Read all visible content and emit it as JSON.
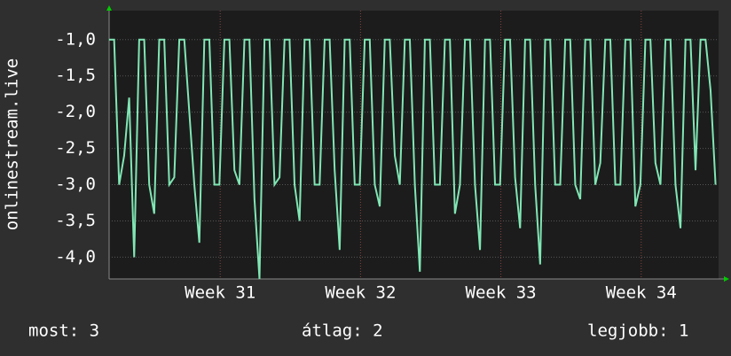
{
  "chart_data": {
    "type": "line",
    "y_label": "onlinestream.live",
    "xlim": [
      0,
      30.4
    ],
    "xticks": [
      {
        "value": 5.54,
        "label": "Week 31"
      },
      {
        "value": 12.54,
        "label": "Week 32"
      },
      {
        "value": 19.54,
        "label": "Week 33"
      },
      {
        "value": 26.54,
        "label": "Week 34"
      }
    ],
    "ylim": [
      -4.3,
      -0.6
    ],
    "yticks": [
      {
        "value": -1,
        "label": "-1,0"
      },
      {
        "value": -1.5,
        "label": "-1,5"
      },
      {
        "value": -2,
        "label": "-2,0"
      },
      {
        "value": -2.5,
        "label": "-2,5"
      },
      {
        "value": -3,
        "label": "-3,0"
      },
      {
        "value": -3.5,
        "label": "-3,5"
      },
      {
        "value": -4,
        "label": "-4,0"
      }
    ],
    "grid": true,
    "x": [
      0,
      0.25,
      0.5,
      0.75,
      1,
      1.25,
      1.5,
      1.75,
      2,
      2.25,
      2.5,
      2.75,
      3,
      3.25,
      3.5,
      3.75,
      4,
      4.25,
      4.5,
      4.75,
      5,
      5.25,
      5.5,
      5.75,
      6,
      6.25,
      6.5,
      6.75,
      7,
      7.25,
      7.5,
      7.75,
      8,
      8.25,
      8.5,
      8.75,
      9,
      9.25,
      9.5,
      9.75,
      10,
      10.25,
      10.5,
      10.75,
      11,
      11.25,
      11.5,
      11.75,
      12,
      12.25,
      12.5,
      12.75,
      13,
      13.25,
      13.5,
      13.75,
      14,
      14.25,
      14.5,
      14.75,
      15,
      15.25,
      15.5,
      15.75,
      16,
      16.25,
      16.5,
      16.75,
      17,
      17.25,
      17.5,
      17.75,
      18,
      18.25,
      18.5,
      18.75,
      19,
      19.25,
      19.5,
      19.75,
      20,
      20.25,
      20.5,
      20.75,
      21,
      21.25,
      21.5,
      21.75,
      22,
      22.25,
      22.5,
      22.75,
      23,
      23.25,
      23.5,
      23.75,
      24,
      24.25,
      24.5,
      24.75,
      25,
      25.25,
      25.5,
      25.75,
      26,
      26.25,
      26.5,
      26.75,
      27,
      27.25,
      27.5,
      27.75,
      28,
      28.25,
      28.5,
      28.75,
      29,
      29.25,
      29.5,
      29.75,
      30,
      30.25
    ],
    "series": [
      {
        "color": "#80e6b4",
        "values": [
          -1,
          -1,
          -3,
          -2.6,
          -1.8,
          -4,
          -1,
          -1,
          -3,
          -3.4,
          -1,
          -1,
          -3,
          -2.9,
          -1,
          -1,
          -2,
          -3,
          -3.8,
          -1,
          -1,
          -3,
          -3,
          -1,
          -1,
          -2.8,
          -3,
          -1,
          -1,
          -3.2,
          -4.3,
          -1,
          -1,
          -3,
          -2.9,
          -1,
          -1,
          -3,
          -3.5,
          -1,
          -1,
          -3,
          -3,
          -1,
          -1,
          -2.8,
          -3.9,
          -1,
          -1,
          -3,
          -3,
          -1,
          -1,
          -3,
          -3.3,
          -1,
          -1,
          -2.6,
          -3,
          -1,
          -1,
          -3,
          -4.2,
          -1,
          -1,
          -3,
          -3,
          -1,
          -1,
          -3.4,
          -3,
          -1,
          -1,
          -3,
          -3.9,
          -1,
          -1,
          -3,
          -3,
          -1,
          -1,
          -2.9,
          -3.6,
          -1,
          -1,
          -3,
          -4.1,
          -1,
          -1,
          -3,
          -3,
          -1,
          -1,
          -3,
          -3.2,
          -1,
          -1,
          -3,
          -2.7,
          -1,
          -1,
          -3,
          -3,
          -1,
          -1,
          -3.3,
          -3,
          -1,
          -1,
          -2.7,
          -3,
          -1,
          -1,
          -3,
          -3.6,
          -1,
          -1,
          -2.8,
          -1,
          -1,
          -1.7,
          -3
        ]
      }
    ],
    "footer": {
      "now": "most: 3",
      "average": "átlag: 2",
      "best": "legjobb: 1"
    }
  }
}
